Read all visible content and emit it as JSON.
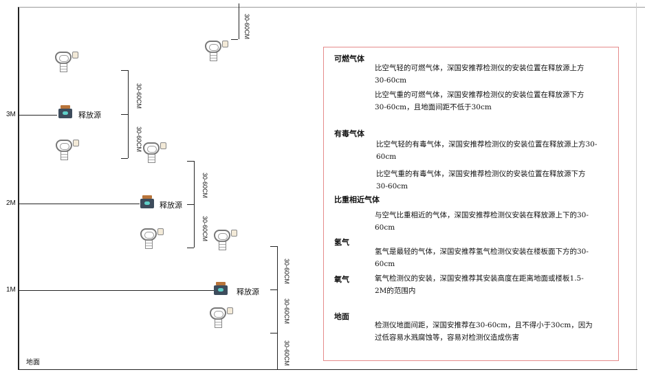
{
  "levels": {
    "l3": "3M",
    "l2": "2M",
    "l1": "1M",
    "ground": "地面"
  },
  "source_label": "释放源",
  "dimension_label": "30-60CM",
  "legend": {
    "flammable": {
      "title": "可燃气体",
      "lighter": "比空气轻的可燃气体，深国安推荐检测仪的安装位置在释放源上方30-60cm",
      "heavier": "比空气重的可燃气体，深国安推荐检测仪的安装位置在释放源下方30-60cm，且地面间距不低于30cm"
    },
    "toxic": {
      "title": "有毒气体",
      "lighter": "比空气轻的有毒气体，深国安推荐检测仪的安装位置在释放源上方30-60cm",
      "heavier": "比空气重的有毒气体，深国安推荐检测仪的安装位置在释放源下方30-60cm"
    },
    "similar": {
      "title": "比重相近气体",
      "text": "与空气比重相近的气体，深国安推荐检测仪安装在释放源上下的30-60cm"
    },
    "hydrogen": {
      "title": "氢气",
      "text": "氢气是最轻的气体，深国安推荐氢气检测仪安装在楼板面下方的30-60cm"
    },
    "oxygen": {
      "title": "氧气",
      "text": "氧气检测仪的安装，深国安推荐其安装高度在距离地面或楼板1.5-2M的范围内"
    },
    "ground": {
      "title": "地面",
      "text": "检测仪地面间距，深国安推荐在30-60cm，且不得小于30cm，因为过低容易水溅腐蚀等，容易对检测仪造成伤害"
    }
  },
  "colors": {
    "legend_border": "#e58a8a",
    "source_body": "#3d4c5c"
  }
}
